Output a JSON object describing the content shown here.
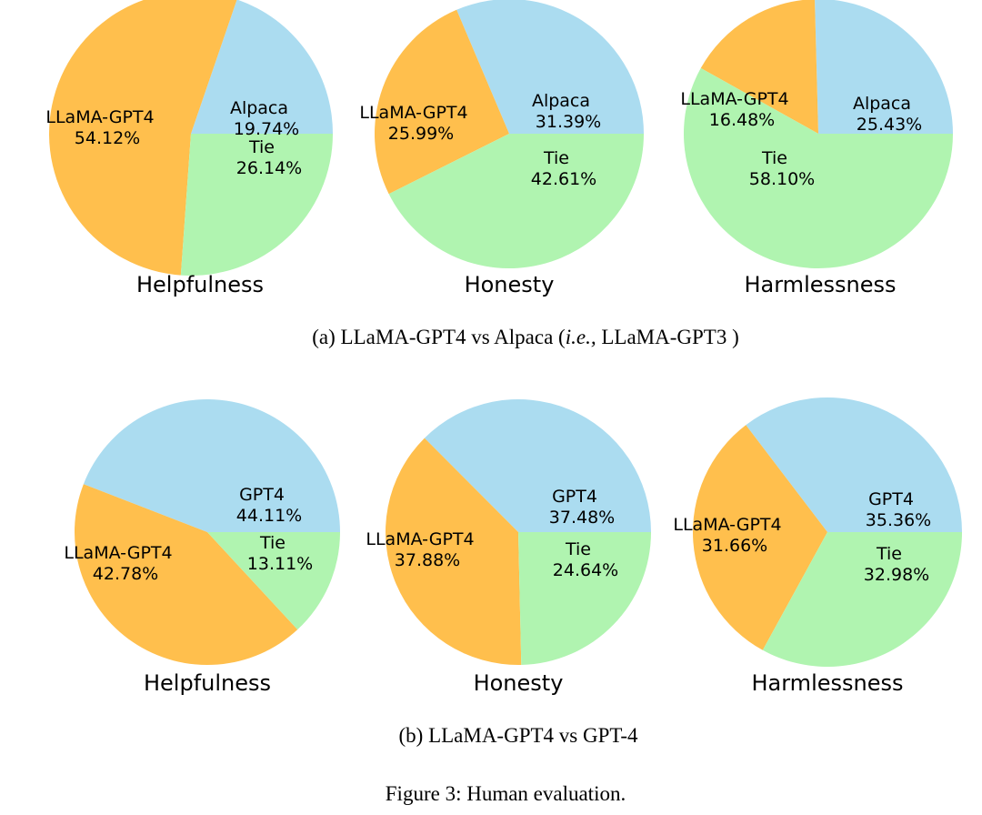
{
  "colors": {
    "llama": "#FFBF4D",
    "alpaca": "#ABDCF0",
    "gpt4": "#ABDCF0",
    "tie": "#B0F4B0"
  },
  "chart_data": [
    {
      "type": "pie",
      "title": "Helpfulness",
      "group": "a",
      "slices": [
        {
          "label": "Alpaca",
          "value": 19.74,
          "display": "19.74%",
          "color": "#ABDCF0"
        },
        {
          "label": "LLaMA-GPT4",
          "value": 54.12,
          "display": "54.12%",
          "color": "#FFBF4D"
        },
        {
          "label": "Tie",
          "value": 26.14,
          "display": "26.14%",
          "color": "#B0F4B0"
        }
      ]
    },
    {
      "type": "pie",
      "title": "Honesty",
      "group": "a",
      "slices": [
        {
          "label": "Alpaca",
          "value": 31.39,
          "display": "31.39%",
          "color": "#ABDCF0"
        },
        {
          "label": "LLaMA-GPT4",
          "value": 25.99,
          "display": "25.99%",
          "color": "#FFBF4D"
        },
        {
          "label": "Tie",
          "value": 42.61,
          "display": "42.61%",
          "color": "#B0F4B0"
        }
      ]
    },
    {
      "type": "pie",
      "title": "Harmlessness",
      "group": "a",
      "slices": [
        {
          "label": "Alpaca",
          "value": 25.43,
          "display": "25.43%",
          "color": "#ABDCF0"
        },
        {
          "label": "LLaMA-GPT4",
          "value": 16.48,
          "display": "16.48%",
          "color": "#FFBF4D"
        },
        {
          "label": "Tie",
          "value": 58.1,
          "display": "58.10%",
          "color": "#B0F4B0"
        }
      ]
    },
    {
      "type": "pie",
      "title": "Helpfulness",
      "group": "b",
      "slices": [
        {
          "label": "GPT4",
          "value": 44.11,
          "display": "44.11%",
          "color": "#ABDCF0"
        },
        {
          "label": "LLaMA-GPT4",
          "value": 42.78,
          "display": "42.78%",
          "color": "#FFBF4D"
        },
        {
          "label": "Tie",
          "value": 13.11,
          "display": "13.11%",
          "color": "#B0F4B0"
        }
      ]
    },
    {
      "type": "pie",
      "title": "Honesty",
      "group": "b",
      "slices": [
        {
          "label": "GPT4",
          "value": 37.48,
          "display": "37.48%",
          "color": "#ABDCF0"
        },
        {
          "label": "LLaMA-GPT4",
          "value": 37.88,
          "display": "37.88%",
          "color": "#FFBF4D"
        },
        {
          "label": "Tie",
          "value": 24.64,
          "display": "24.64%",
          "color": "#B0F4B0"
        }
      ]
    },
    {
      "type": "pie",
      "title": "Harmlessness",
      "group": "b",
      "slices": [
        {
          "label": "GPT4",
          "value": 35.36,
          "display": "35.36%",
          "color": "#ABDCF0"
        },
        {
          "label": "LLaMA-GPT4",
          "value": 31.66,
          "display": "31.66%",
          "color": "#FFBF4D"
        },
        {
          "label": "Tie",
          "value": 32.98,
          "display": "32.98%",
          "color": "#B0F4B0"
        }
      ]
    }
  ],
  "captions": {
    "a_prefix": "(a) LLaMA-GPT4 vs Alpaca (",
    "a_italic": "i.e.,",
    "a_suffix": " LLaMA-GPT3 )",
    "b": "(b) LLaMA-GPT4 vs GPT-4",
    "figure": "Figure 3: Human evaluation."
  }
}
